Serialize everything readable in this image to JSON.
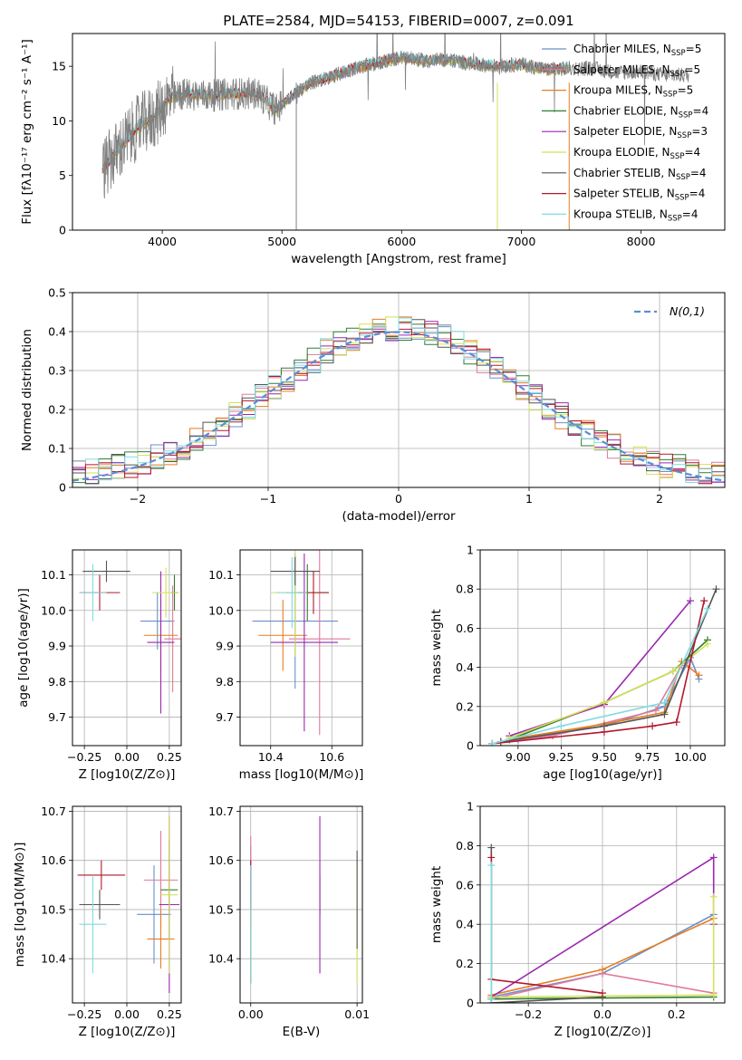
{
  "figure_title": "PLATE=2584, MJD=54153, FIBERID=0007, z=0.091",
  "model_colors": {
    "chabrier_miles": "#6a8fcc",
    "salpeter_miles": "#e07a9a",
    "kroupa_miles": "#e67e22",
    "chabrier_elodie": "#2e7d32",
    "salpeter_elodie": "#9b27af",
    "kroupa_elodie": "#d4e157",
    "chabrier_stelib": "#555555",
    "salpeter_stelib": "#b2182b",
    "kroupa_stelib": "#7fdbe0",
    "data": "#808080"
  },
  "legend": [
    {
      "key": "chabrier_miles",
      "pre": "Chabrier MILES, N",
      "sub": "SSP",
      "post": "=5"
    },
    {
      "key": "salpeter_miles",
      "pre": "Salpeter MILES, N",
      "sub": "SSP",
      "post": "=5"
    },
    {
      "key": "kroupa_miles",
      "pre": "Kroupa MILES, N",
      "sub": "SSP",
      "post": "=5"
    },
    {
      "key": "chabrier_elodie",
      "pre": "Chabrier ELODIE, N",
      "sub": "SSP",
      "post": "=4"
    },
    {
      "key": "salpeter_elodie",
      "pre": "Salpeter ELODIE, N",
      "sub": "SSP",
      "post": "=3"
    },
    {
      "key": "kroupa_elodie",
      "pre": "Kroupa ELODIE, N",
      "sub": "SSP",
      "post": "=4"
    },
    {
      "key": "chabrier_stelib",
      "pre": "Chabrier STELIB, N",
      "sub": "SSP",
      "post": "=4"
    },
    {
      "key": "salpeter_stelib",
      "pre": "Salpeter STELIB, N",
      "sub": "SSP",
      "post": "=4"
    },
    {
      "key": "kroupa_stelib",
      "pre": "Kroupa STELIB, N",
      "sub": "SSP",
      "post": "=4"
    }
  ],
  "chart_data": [
    {
      "id": "spectrum",
      "type": "line",
      "xlabel": "wavelength [Angstrom, rest frame]",
      "ylabel": "Flux [fλ10⁻¹⁷ erg cm⁻² s⁻¹ A⁻¹]",
      "xlim": [
        3250,
        8700
      ],
      "ylim": [
        0,
        18
      ],
      "xticks": [
        4000,
        5000,
        6000,
        7000,
        8000
      ],
      "yticks": [
        0,
        5,
        10,
        15
      ],
      "grid": false,
      "legend_position": "upper right",
      "continuum": {
        "x": [
          3500,
          3650,
          3800,
          3950,
          4050,
          4200,
          4400,
          4600,
          4800,
          4950,
          5100,
          5250,
          5400,
          5600,
          5800,
          6000,
          6200,
          6400,
          6600,
          6800,
          7000,
          7200,
          7400,
          7600,
          7800,
          8000,
          8200,
          8400
        ],
        "y": [
          5.5,
          7.5,
          9.5,
          10.5,
          12.0,
          12.5,
          12.3,
          12.5,
          12.5,
          11.0,
          12.5,
          13.5,
          14.0,
          14.8,
          15.3,
          15.8,
          15.5,
          15.6,
          15.2,
          15.0,
          15.2,
          14.7,
          14.8,
          14.8,
          14.4,
          14.5,
          14.2,
          14.2
        ]
      },
      "data_x_range": [
        3500,
        8400
      ],
      "model_x_range": [
        3500,
        7400
      ]
    },
    {
      "id": "residuals",
      "type": "histogram",
      "xlabel": "(data-model)/error",
      "ylabel": "Normed distribution",
      "xlim": [
        -2.5,
        2.5
      ],
      "ylim": [
        0,
        0.5
      ],
      "xticks": [
        -2,
        -1,
        0,
        1,
        2
      ],
      "yticks": [
        0,
        0.1,
        0.2,
        0.3,
        0.4,
        0.5
      ],
      "grid": true,
      "legend_position": "upper right",
      "reference_label": "N(0,1)",
      "reference_distribution": {
        "mean": 0,
        "sigma": 1
      },
      "bin_width": 0.1
    },
    {
      "id": "age_vs_Z",
      "type": "errorbar",
      "xlabel": "Z [log10(Z/Z⊙)]",
      "ylabel": "age [log10(age/yr)]",
      "xlim": [
        -0.32,
        0.32
      ],
      "ylim": [
        9.62,
        10.17
      ],
      "xticks": [
        -0.25,
        0.0,
        0.25
      ],
      "xtick_labels": [
        "−0.25",
        "0.00",
        "0.25"
      ],
      "yticks": [
        9.7,
        9.8,
        9.9,
        10.0,
        10.1
      ],
      "yticks_label": [
        "9.7",
        "9.8",
        "9.9",
        "10.0",
        "10.1"
      ],
      "points": [
        {
          "model": "chabrier_miles",
          "x": 0.18,
          "y": 9.97,
          "xerr": 0.1,
          "yerr": 0.08
        },
        {
          "model": "salpeter_miles",
          "x": 0.27,
          "y": 9.92,
          "xerr": 0.05,
          "yerr": 0.15
        },
        {
          "model": "kroupa_miles",
          "x": 0.2,
          "y": 9.93,
          "xerr": 0.1,
          "yerr": 0.1
        },
        {
          "model": "chabrier_elodie",
          "x": 0.28,
          "y": 10.05,
          "xerr": 0.02,
          "yerr": 0.05
        },
        {
          "model": "salpeter_elodie",
          "x": 0.2,
          "y": 9.91,
          "xerr": 0.08,
          "yerr": 0.2
        },
        {
          "model": "kroupa_elodie",
          "x": 0.23,
          "y": 10.05,
          "xerr": 0.08,
          "yerr": 0.07
        },
        {
          "model": "chabrier_stelib",
          "x": -0.12,
          "y": 10.11,
          "xerr": 0.14,
          "yerr": 0.03
        },
        {
          "model": "salpeter_stelib",
          "x": -0.16,
          "y": 10.05,
          "xerr": 0.12,
          "yerr": 0.05
        },
        {
          "model": "kroupa_stelib",
          "x": -0.2,
          "y": 10.05,
          "xerr": 0.08,
          "yerr": 0.08
        }
      ]
    },
    {
      "id": "age_vs_mass",
      "type": "errorbar",
      "xlabel": "mass [log10(M/M⊙)]",
      "ylabel": "",
      "xlim": [
        10.3,
        10.7
      ],
      "ylim": [
        9.62,
        10.17
      ],
      "xticks": [
        10.4,
        10.6
      ],
      "yticks": [
        9.7,
        9.8,
        9.9,
        10.0,
        10.1
      ],
      "yticks_label": [
        "9.7",
        "9.8",
        "9.9",
        "10.0",
        "10.1"
      ],
      "points": [
        {
          "model": "chabrier_miles",
          "x": 10.48,
          "y": 9.97,
          "xerr": 0.14,
          "yerr": 0.19
        },
        {
          "model": "salpeter_miles",
          "x": 10.56,
          "y": 9.92,
          "xerr": 0.1,
          "yerr": 0.27
        },
        {
          "model": "kroupa_miles",
          "x": 10.44,
          "y": 9.93,
          "xerr": 0.08,
          "yerr": 0.1
        },
        {
          "model": "chabrier_elodie",
          "x": 10.52,
          "y": 10.05,
          "xerr": 0.07,
          "yerr": 0.08
        },
        {
          "model": "salpeter_elodie",
          "x": 10.51,
          "y": 9.91,
          "xerr": 0.11,
          "yerr": 0.25
        },
        {
          "model": "kroupa_elodie",
          "x": 10.48,
          "y": 10.05,
          "xerr": 0.08,
          "yerr": 0.18
        },
        {
          "model": "chabrier_stelib",
          "x": 10.48,
          "y": 10.11,
          "xerr": 0.08,
          "yerr": 0.04
        },
        {
          "model": "salpeter_stelib",
          "x": 10.54,
          "y": 10.05,
          "xerr": 0.05,
          "yerr": 0.06
        },
        {
          "model": "kroupa_stelib",
          "x": 10.47,
          "y": 10.05,
          "xerr": 0.05,
          "yerr": 0.1
        }
      ]
    },
    {
      "id": "mass_weight_vs_age",
      "type": "line",
      "xlabel": "age [log10(age/yr)]",
      "ylabel": "mass weight",
      "xlim": [
        8.78,
        10.2
      ],
      "ylim": [
        0,
        1
      ],
      "xticks": [
        9.0,
        9.25,
        9.5,
        9.75,
        10.0
      ],
      "xtick_labels": [
        "9.00",
        "9.25",
        "9.50",
        "9.75",
        "10.00"
      ],
      "yticks": [
        0,
        0.2,
        0.4,
        0.6,
        0.8,
        1.0
      ],
      "grid": true,
      "series": [
        {
          "model": "chabrier_miles",
          "x": [
            8.85,
            9.0,
            9.5,
            9.85,
            10.0,
            10.05
          ],
          "y": [
            0.01,
            0.03,
            0.1,
            0.2,
            0.45,
            0.34
          ]
        },
        {
          "model": "salpeter_miles",
          "x": [
            8.85,
            9.2,
            9.8,
            9.95
          ],
          "y": [
            0.01,
            0.05,
            0.18,
            0.41
          ]
        },
        {
          "model": "kroupa_miles",
          "x": [
            8.9,
            9.0,
            9.5,
            9.85,
            9.95,
            10.05
          ],
          "y": [
            0.02,
            0.04,
            0.11,
            0.17,
            0.43,
            0.36
          ]
        },
        {
          "model": "chabrier_elodie",
          "x": [
            8.95,
            9.5,
            9.9,
            10.1
          ],
          "y": [
            0.03,
            0.22,
            0.38,
            0.54
          ]
        },
        {
          "model": "salpeter_elodie",
          "x": [
            8.95,
            9.5,
            10.0
          ],
          "y": [
            0.05,
            0.21,
            0.74
          ]
        },
        {
          "model": "kroupa_elodie",
          "x": [
            8.95,
            9.5,
            9.9,
            10.1
          ],
          "y": [
            0.04,
            0.22,
            0.38,
            0.52
          ]
        },
        {
          "model": "chabrier_stelib",
          "x": [
            8.9,
            9.5,
            9.85,
            10.15
          ],
          "y": [
            0.02,
            0.1,
            0.16,
            0.8
          ]
        },
        {
          "model": "salpeter_stelib",
          "x": [
            8.85,
            9.5,
            9.78,
            9.92,
            10.08
          ],
          "y": [
            0.01,
            0.07,
            0.1,
            0.12,
            0.74
          ]
        },
        {
          "model": "kroupa_stelib",
          "x": [
            8.85,
            9.25,
            9.85,
            10.1
          ],
          "y": [
            0.01,
            0.1,
            0.22,
            0.7
          ]
        }
      ]
    },
    {
      "id": "mass_vs_Z",
      "type": "errorbar",
      "xlabel": "Z [log10(Z/Z⊙)]",
      "ylabel": "mass [log10(M/M⊙)]",
      "xlim": [
        -0.32,
        0.32
      ],
      "ylim": [
        10.31,
        10.71
      ],
      "xticks": [
        -0.25,
        0.0,
        0.25
      ],
      "xtick_labels": [
        "−0.25",
        "0.00",
        "0.25"
      ],
      "yticks": [
        10.4,
        10.5,
        10.6,
        10.7
      ],
      "yticks_label": [
        "10.4",
        "10.5",
        "10.6",
        "10.7"
      ],
      "points": [
        {
          "model": "chabrier_miles",
          "x": 0.16,
          "y": 10.49,
          "xerr": 0.1,
          "yerr": 0.1
        },
        {
          "model": "salpeter_miles",
          "x": 0.2,
          "y": 10.56,
          "xerr": 0.1,
          "yerr": 0.1
        },
        {
          "model": "kroupa_miles",
          "x": 0.2,
          "y": 10.44,
          "xerr": 0.08,
          "yerr": 0.06
        },
        {
          "model": "chabrier_elodie",
          "x": 0.25,
          "y": 10.54,
          "xerr": 0.05,
          "yerr": 0.1
        },
        {
          "model": "salpeter_elodie",
          "x": 0.25,
          "y": 10.51,
          "xerr": 0.06,
          "yerr": 0.18
        },
        {
          "model": "kroupa_elodie",
          "x": 0.25,
          "y": 10.53,
          "xerr": 0.05,
          "yerr": 0.16
        },
        {
          "model": "chabrier_stelib",
          "x": -0.16,
          "y": 10.51,
          "xerr": 0.12,
          "yerr": 0.03
        },
        {
          "model": "salpeter_stelib",
          "x": -0.15,
          "y": 10.57,
          "xerr": 0.14,
          "yerr": 0.03
        },
        {
          "model": "kroupa_stelib",
          "x": -0.2,
          "y": 10.47,
          "xerr": 0.08,
          "yerr": 0.1
        }
      ]
    },
    {
      "id": "mass_vs_EBV",
      "type": "errorbar",
      "xlabel": "E(B-V)",
      "ylabel": "",
      "xlim": [
        -0.001,
        0.0105
      ],
      "ylim": [
        10.31,
        10.71
      ],
      "xticks": [
        0.0,
        0.01
      ],
      "xtick_labels": [
        "0.00",
        "0.01"
      ],
      "yticks": [
        10.4,
        10.5,
        10.6,
        10.7
      ],
      "yticks_label": [
        "10.4",
        "10.5",
        "10.6",
        "10.7"
      ],
      "points": [
        {
          "model": "chabrier_miles",
          "x": 0.0,
          "y": 10.49,
          "xerr": 0,
          "yerr": 0.14
        },
        {
          "model": "salpeter_miles",
          "x": 0.0,
          "y": 10.56,
          "xerr": 0,
          "yerr": 0.09
        },
        {
          "model": "kroupa_miles",
          "x": 0.0,
          "y": 10.44,
          "xerr": 0,
          "yerr": 0.09
        },
        {
          "model": "chabrier_elodie",
          "x": 0.0065,
          "y": 10.53,
          "xerr": 0,
          "yerr": 0.04
        },
        {
          "model": "salpeter_elodie",
          "x": 0.0065,
          "y": 10.53,
          "xerr": 0,
          "yerr": 0.16
        },
        {
          "model": "kroupa_elodie",
          "x": 0.01,
          "y": 10.48,
          "xerr": 0,
          "yerr": 0.13
        },
        {
          "model": "chabrier_stelib",
          "x": 0.01,
          "y": 10.52,
          "xerr": 0,
          "yerr": 0.1
        },
        {
          "model": "salpeter_stelib",
          "x": 0.0,
          "y": 10.55,
          "xerr": 0,
          "yerr": 0.05
        },
        {
          "model": "kroupa_stelib",
          "x": 0.0,
          "y": 10.47,
          "xerr": 0,
          "yerr": 0.12
        }
      ]
    },
    {
      "id": "mass_weight_vs_Z",
      "type": "line",
      "xlabel": "Z [log10(Z/Z⊙)]",
      "ylabel": "mass weight",
      "xlim": [
        -0.33,
        0.33
      ],
      "ylim": [
        0,
        1
      ],
      "xticks": [
        -0.2,
        0.0,
        0.2
      ],
      "xtick_labels": [
        "−0.2",
        "0.0",
        "0.2"
      ],
      "yticks": [
        0,
        0.2,
        0.4,
        0.6,
        0.8,
        1.0
      ],
      "grid": true,
      "series": [
        {
          "model": "chabrier_miles",
          "x": [
            -0.3,
            0.0,
            0.3
          ],
          "y": [
            0.03,
            0.15,
            0.45
          ]
        },
        {
          "model": "salpeter_miles",
          "x": [
            -0.3,
            0.0,
            0.3
          ],
          "y": [
            0.02,
            0.15,
            0.05
          ]
        },
        {
          "model": "kroupa_miles",
          "x": [
            -0.3,
            0.0,
            0.3
          ],
          "y": [
            0.04,
            0.17,
            0.43
          ]
        },
        {
          "model": "chabrier_elodie",
          "x": [
            -0.3,
            0.3
          ],
          "y": [
            0.02,
            0.03
          ]
        },
        {
          "model": "salpeter_elodie",
          "x": [
            -0.3,
            0.3,
            0.3
          ],
          "y": [
            0.03,
            0.74,
            0.4
          ]
        },
        {
          "model": "kroupa_elodie",
          "x": [
            -0.3,
            0.3,
            0.3
          ],
          "y": [
            0.03,
            0.04,
            0.54
          ]
        },
        {
          "model": "chabrier_stelib",
          "x": [
            -0.3,
            -0.3,
            0.0
          ],
          "y": [
            0.79,
            0.0,
            0.03
          ]
        },
        {
          "model": "salpeter_stelib",
          "x": [
            -0.3,
            -0.3,
            0.0
          ],
          "y": [
            0.74,
            0.12,
            0.05
          ]
        },
        {
          "model": "kroupa_stelib",
          "x": [
            -0.3,
            -0.3
          ],
          "y": [
            0.7,
            0.02
          ]
        }
      ]
    }
  ]
}
